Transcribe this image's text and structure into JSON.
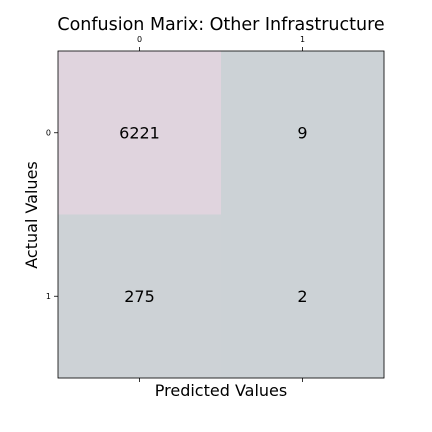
{
  "chart_data": {
    "type": "heatmap",
    "title": "Confusion Marix: Other Infrastructure",
    "xlabel": "Predicted Values",
    "ylabel": "Actual Values",
    "x_ticks": [
      "0",
      "1"
    ],
    "y_ticks": [
      "0",
      "1"
    ],
    "x_tick_position": "top",
    "matrix": [
      [
        6221,
        9
      ],
      [
        275,
        2
      ]
    ],
    "cell_labels": [
      [
        "6221",
        "9"
      ],
      [
        "275",
        "2"
      ]
    ],
    "colors": {
      "high": "#e0d4de",
      "low": "#ccd2d6",
      "frame": "#000000"
    },
    "grid": false,
    "legend": "none"
  }
}
